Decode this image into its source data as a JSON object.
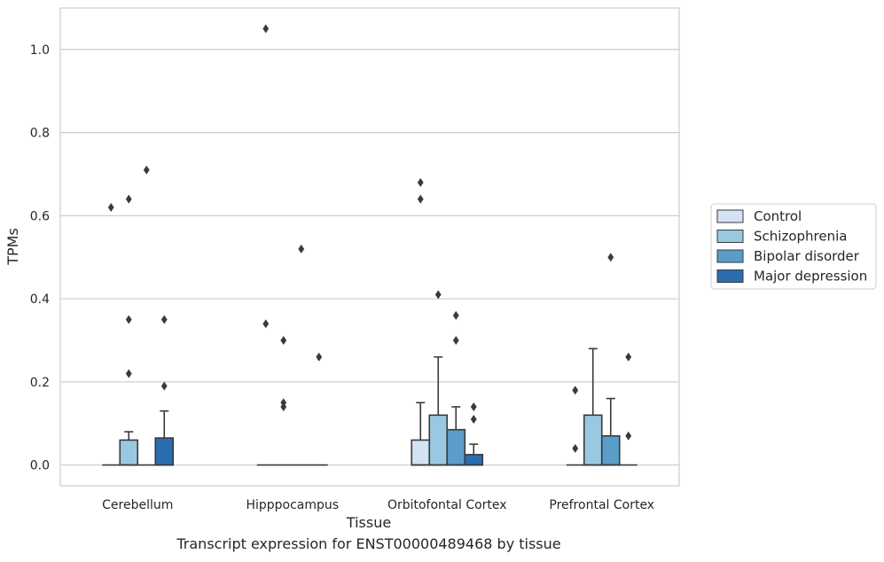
{
  "caption": "Transcript expression for ENST00000489468 by tissue",
  "chart_data": {
    "type": "box",
    "xlabel": "Tissue",
    "ylabel": "TPMs",
    "ylim": [
      -0.05,
      1.1
    ],
    "yticks": [
      0.0,
      0.2,
      0.4,
      0.6,
      0.8,
      1.0
    ],
    "ytick_labels": [
      "0.0",
      "0.2",
      "0.4",
      "0.6",
      "0.8",
      "1.0"
    ],
    "grid": "horizontal",
    "legend_position": "right",
    "categories": [
      "Cerebellum",
      "Hipppocampus",
      "Orbitofontal Cortex",
      "Prefrontal Cortex"
    ],
    "series": [
      {
        "name": "Control",
        "color": "#d2e3f3",
        "boxes": [
          {
            "q1": 0,
            "median": 0,
            "q3": 0,
            "whisker_low": 0,
            "whisker_high": 0,
            "outliers": [
              0.62
            ]
          },
          {
            "q1": 0,
            "median": 0,
            "q3": 0,
            "whisker_low": 0,
            "whisker_high": 0,
            "outliers": [
              1.05,
              0.34
            ]
          },
          {
            "q1": 0,
            "median": 0,
            "q3": 0.06,
            "whisker_low": 0,
            "whisker_high": 0.15,
            "outliers": [
              0.68,
              0.64
            ]
          },
          {
            "q1": 0,
            "median": 0,
            "q3": 0,
            "whisker_low": 0,
            "whisker_high": 0,
            "outliers": [
              0.18,
              0.04
            ]
          }
        ]
      },
      {
        "name": "Schizophrenia",
        "color": "#9ac8e0",
        "boxes": [
          {
            "q1": 0,
            "median": 0,
            "q3": 0.06,
            "whisker_low": 0,
            "whisker_high": 0.08,
            "outliers": [
              0.64,
              0.35,
              0.22
            ]
          },
          {
            "q1": 0,
            "median": 0,
            "q3": 0,
            "whisker_low": 0,
            "whisker_high": 0,
            "outliers": [
              0.3,
              0.15,
              0.14
            ]
          },
          {
            "q1": 0,
            "median": 0,
            "q3": 0.12,
            "whisker_low": 0,
            "whisker_high": 0.26,
            "outliers": [
              0.41
            ]
          },
          {
            "q1": 0,
            "median": 0,
            "q3": 0.12,
            "whisker_low": 0,
            "whisker_high": 0.28,
            "outliers": []
          }
        ]
      },
      {
        "name": "Bipolar disorder",
        "color": "#5b9dc9",
        "boxes": [
          {
            "q1": 0,
            "median": 0,
            "q3": 0,
            "whisker_low": 0,
            "whisker_high": 0,
            "outliers": [
              0.71
            ]
          },
          {
            "q1": 0,
            "median": 0,
            "q3": 0,
            "whisker_low": 0,
            "whisker_high": 0,
            "outliers": [
              0.52
            ]
          },
          {
            "q1": 0,
            "median": 0,
            "q3": 0.085,
            "whisker_low": 0,
            "whisker_high": 0.14,
            "outliers": [
              0.36,
              0.3
            ]
          },
          {
            "q1": 0,
            "median": 0,
            "q3": 0.07,
            "whisker_low": 0,
            "whisker_high": 0.16,
            "outliers": [
              0.5
            ]
          }
        ]
      },
      {
        "name": "Major depression",
        "color": "#2a6eb0",
        "boxes": [
          {
            "q1": 0,
            "median": 0,
            "q3": 0.065,
            "whisker_low": 0,
            "whisker_high": 0.13,
            "outliers": [
              0.35,
              0.19
            ]
          },
          {
            "q1": 0,
            "median": 0,
            "q3": 0,
            "whisker_low": 0,
            "whisker_high": 0,
            "outliers": [
              0.26
            ]
          },
          {
            "q1": 0,
            "median": 0,
            "q3": 0.025,
            "whisker_low": 0,
            "whisker_high": 0.05,
            "outliers": [
              0.14,
              0.11
            ]
          },
          {
            "q1": 0,
            "median": 0,
            "q3": 0,
            "whisker_low": 0,
            "whisker_high": 0,
            "outliers": [
              0.26,
              0.07
            ]
          }
        ]
      }
    ]
  }
}
